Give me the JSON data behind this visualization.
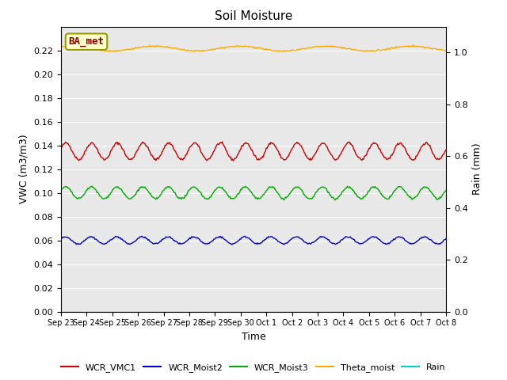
{
  "title": "Soil Moisture",
  "xlabel": "Time",
  "ylabel_left": "VWC (m3/m3)",
  "ylabel_right": "Rain (mm)",
  "annotation_text": "BA_met",
  "n_points": 500,
  "duration_days": 15,
  "wcr_vmc1_base": 0.135,
  "wcr_vmc1_amp": 0.007,
  "wcr_moist2_base": 0.06,
  "wcr_moist2_amp": 0.003,
  "wcr_moist3_base": 0.1,
  "wcr_moist3_amp": 0.005,
  "theta_moist_base": 0.2215,
  "theta_moist_amp": 0.002,
  "rain_value": 0.0,
  "color_wcr_vmc1": "#cc0000",
  "color_wcr_moist2": "#0000cc",
  "color_wcr_moist3": "#00aa00",
  "color_theta_moist": "#ffaa00",
  "color_rain": "#00cccc",
  "ylim_left": [
    0.0,
    0.24
  ],
  "ylim_right": [
    0.0,
    1.1
  ],
  "yticks_left": [
    0.0,
    0.02,
    0.04,
    0.06,
    0.08,
    0.1,
    0.12,
    0.14,
    0.16,
    0.18,
    0.2,
    0.22
  ],
  "yticks_right": [
    0.0,
    0.2,
    0.4,
    0.6,
    0.8,
    1.0
  ],
  "bg_color": "#e8e8e8",
  "line_width": 1.0,
  "legend_items": [
    "WCR_VMC1",
    "WCR_Moist2",
    "WCR_Moist3",
    "Theta_moist",
    "Rain"
  ],
  "x_labels": [
    "Sep 23",
    "Sep 24",
    "Sep 25",
    "Sep 26",
    "Sep 27",
    "Sep 28",
    "Sep 29",
    "Sep 30",
    "Oct 1",
    "Oct 2",
    "Oct 3",
    "Oct 4",
    "Oct 5",
    "Oct 6",
    "Oct 7",
    "Oct 8"
  ]
}
